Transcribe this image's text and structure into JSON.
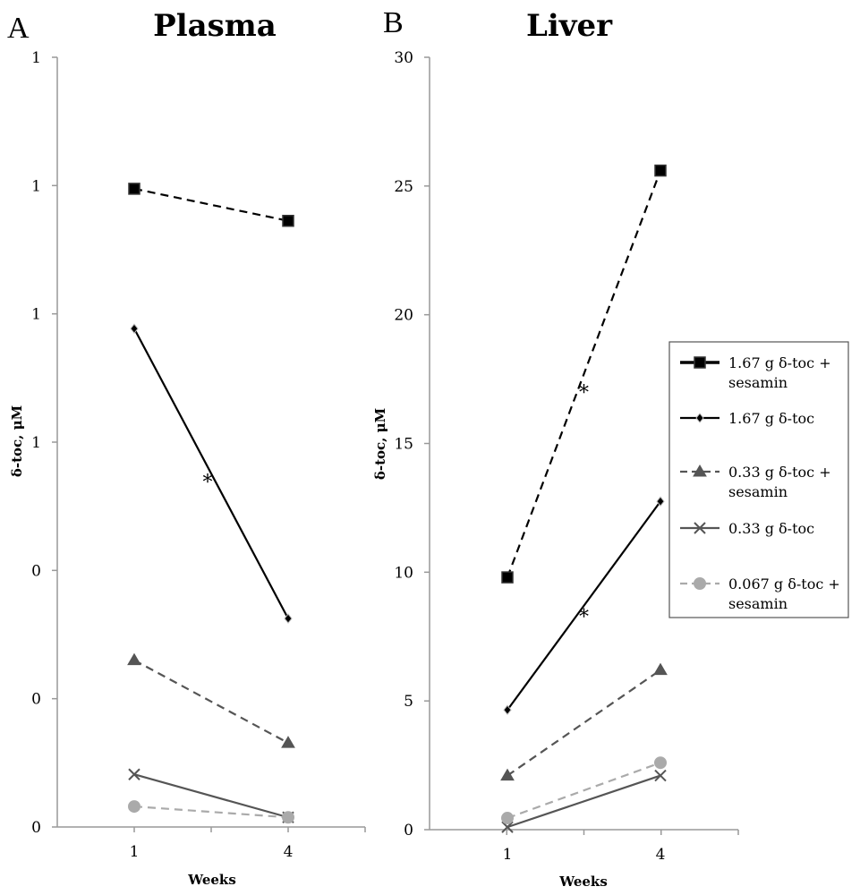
{
  "chart_data": [
    {
      "type": "line",
      "panel_label": "A",
      "title": "Plasma",
      "xlabel": "Weeks",
      "ylabel": "δ-toc, μM",
      "categories": [
        "1",
        "4"
      ],
      "ylim": [
        0,
        1.2
      ],
      "yticks": [
        0,
        0.2,
        0.4,
        0.6,
        0.8,
        1.0,
        1.2
      ],
      "ytick_labels": [
        "0",
        "0",
        "0",
        "1",
        "1",
        "1",
        "1"
      ],
      "series": [
        {
          "name": "1.67 g δ-toc + sesamin",
          "values": [
            0.995,
            0.945
          ]
        },
        {
          "name": "1.67 g δ-toc",
          "values": [
            0.777,
            0.325
          ]
        },
        {
          "name": "0.33 g δ-toc + sesamin",
          "values": [
            0.26,
            0.131
          ]
        },
        {
          "name": "0.33 g δ-toc",
          "values": [
            0.082,
            0.015
          ]
        },
        {
          "name": "0.067 g δ-toc + sesamin",
          "values": [
            0.032,
            0.015
          ]
        }
      ],
      "annotations": [
        {
          "text": "*",
          "series": "1.67 g δ-toc"
        }
      ]
    },
    {
      "type": "line",
      "panel_label": "B",
      "title": "Liver",
      "xlabel": "Weeks",
      "ylabel": "δ-toc, μM",
      "categories": [
        "1",
        "4"
      ],
      "ylim": [
        0,
        30
      ],
      "yticks": [
        0,
        5,
        10,
        15,
        20,
        25,
        30
      ],
      "ytick_labels": [
        "0",
        "5",
        "10",
        "15",
        "20",
        "25",
        "30"
      ],
      "series": [
        {
          "name": "1.67 g δ-toc + sesamin",
          "values": [
            9.8,
            25.6
          ]
        },
        {
          "name": "1.67 g δ-toc",
          "values": [
            4.65,
            12.75
          ]
        },
        {
          "name": "0.33 g δ-toc + sesamin",
          "values": [
            2.1,
            6.2
          ]
        },
        {
          "name": "0.33 g δ-toc",
          "values": [
            0.1,
            2.1
          ]
        },
        {
          "name": "0.067 g δ-toc + sesamin",
          "values": [
            0.45,
            2.6
          ]
        }
      ],
      "annotations": [
        {
          "text": "*",
          "series": "1.67 g δ-toc + sesamin"
        },
        {
          "text": "*",
          "series": "1.67 g δ-toc"
        }
      ]
    }
  ],
  "legend": {
    "placement": "right",
    "entries": [
      {
        "lines": [
          "1.67 g δ-toc +",
          "sesamin"
        ]
      },
      {
        "lines": [
          "1.67 g δ-toc"
        ]
      },
      {
        "lines": [
          "0.33 g δ-toc +",
          "sesamin"
        ]
      },
      {
        "lines": [
          "0.33 g δ-toc"
        ]
      },
      {
        "lines": [
          "0.067 g δ-toc +",
          "sesamin"
        ]
      }
    ]
  },
  "series_styles": [
    {
      "color": "#000000",
      "dash": "dashed",
      "marker": "square"
    },
    {
      "color": "#000000",
      "dash": "solid",
      "marker": "diamond"
    },
    {
      "color": "#555555",
      "dash": "dashed",
      "marker": "triangle"
    },
    {
      "color": "#555555",
      "dash": "solid",
      "marker": "x"
    },
    {
      "color": "#aaaaaa",
      "dash": "dashed",
      "marker": "circle"
    }
  ]
}
